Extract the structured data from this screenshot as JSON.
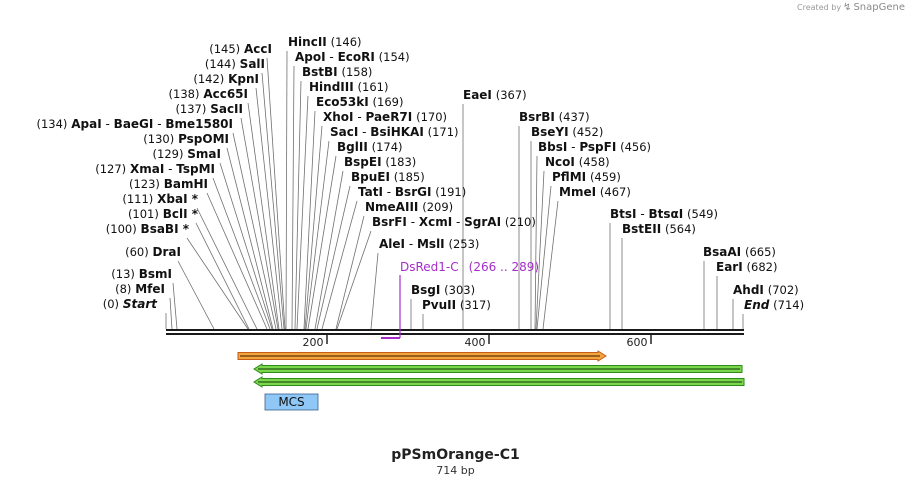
{
  "credit": {
    "prefix": "Created by",
    "brand": "SnapGene",
    "logo_icon": "snapgene-logo-icon"
  },
  "plasmid": {
    "name": "pPSmOrange-C1",
    "size_label": "714 bp"
  },
  "ruler": {
    "ticks": [
      "200",
      "400",
      "600"
    ]
  },
  "sites": [
    {
      "parts": [
        {
          "name": "AccI"
        }
      ],
      "pos": "(145)"
    },
    {
      "parts": [
        {
          "name": "SalI"
        }
      ],
      "pos": "(144)"
    },
    {
      "parts": [
        {
          "name": "KpnI"
        }
      ],
      "pos": "(142)"
    },
    {
      "parts": [
        {
          "name": "Acc65I"
        }
      ],
      "pos": "(138)"
    },
    {
      "parts": [
        {
          "name": "SacII"
        }
      ],
      "pos": "(137)"
    },
    {
      "parts": [
        {
          "name": "ApaI"
        },
        {
          "name": "BaeGI"
        },
        {
          "name": "Bme1580I"
        }
      ],
      "pos": "(134)"
    },
    {
      "parts": [
        {
          "name": "PspOMI"
        }
      ],
      "pos": "(130)"
    },
    {
      "parts": [
        {
          "name": "SmaI"
        }
      ],
      "pos": "(129)"
    },
    {
      "parts": [
        {
          "name": "XmaI"
        },
        {
          "name": "TspMI"
        }
      ],
      "pos": "(127)"
    },
    {
      "parts": [
        {
          "name": "BamHI"
        }
      ],
      "pos": "(123)"
    },
    {
      "parts": [
        {
          "name": "XbaI *"
        }
      ],
      "pos": "(111)"
    },
    {
      "parts": [
        {
          "name": "BclI *"
        }
      ],
      "pos": "(101)"
    },
    {
      "parts": [
        {
          "name": "BsaBI *"
        }
      ],
      "pos": "(100)"
    },
    {
      "parts": [
        {
          "name": "DraI"
        }
      ],
      "pos": "(60)"
    },
    {
      "parts": [
        {
          "name": "BsmI"
        }
      ],
      "pos": "(13)"
    },
    {
      "parts": [
        {
          "name": "MfeI"
        }
      ],
      "pos": "(8)"
    },
    {
      "parts": [
        {
          "name": "Start",
          "italic": true
        }
      ],
      "pos": "(0)"
    },
    {
      "parts": [
        {
          "name": "HincII"
        }
      ],
      "pos": "(146)"
    },
    {
      "parts": [
        {
          "name": "ApoI"
        },
        {
          "name": "EcoRI"
        }
      ],
      "pos": "(154)"
    },
    {
      "parts": [
        {
          "name": "BstBI"
        }
      ],
      "pos": "(158)"
    },
    {
      "parts": [
        {
          "name": "HindIII"
        }
      ],
      "pos": "(161)"
    },
    {
      "parts": [
        {
          "name": "Eco53kI"
        }
      ],
      "pos": "(169)"
    },
    {
      "parts": [
        {
          "name": "XhoI"
        },
        {
          "name": "PaeR7I"
        }
      ],
      "pos": "(170)"
    },
    {
      "parts": [
        {
          "name": "SacI"
        },
        {
          "name": "BsiHKAI"
        }
      ],
      "pos": "(171)"
    },
    {
      "parts": [
        {
          "name": "BglII"
        }
      ],
      "pos": "(174)"
    },
    {
      "parts": [
        {
          "name": "BspEI"
        }
      ],
      "pos": "(183)"
    },
    {
      "parts": [
        {
          "name": "BpuEI"
        }
      ],
      "pos": "(185)"
    },
    {
      "parts": [
        {
          "name": "TatI"
        },
        {
          "name": "BsrGI"
        }
      ],
      "pos": "(191)"
    },
    {
      "parts": [
        {
          "name": "NmeAIII"
        }
      ],
      "pos": "(209)"
    },
    {
      "parts": [
        {
          "name": "BsrFI"
        },
        {
          "name": "XcmI"
        },
        {
          "name": "SgrAI"
        }
      ],
      "pos": "(210)"
    },
    {
      "parts": [
        {
          "name": "AleI"
        },
        {
          "name": "MslI"
        }
      ],
      "pos": "(253)"
    },
    {
      "parts": [
        {
          "name": "EaeI"
        }
      ],
      "pos": "(367)"
    },
    {
      "parts": [
        {
          "name": "BsgI"
        }
      ],
      "pos": "(303)"
    },
    {
      "parts": [
        {
          "name": "PvuII"
        }
      ],
      "pos": "(317)"
    },
    {
      "parts": [
        {
          "name": "BsrBI"
        }
      ],
      "pos": "(437)"
    },
    {
      "parts": [
        {
          "name": "BseYI"
        }
      ],
      "pos": "(452)"
    },
    {
      "parts": [
        {
          "name": "BbsI"
        },
        {
          "name": "PspFI"
        }
      ],
      "pos": "(456)"
    },
    {
      "parts": [
        {
          "name": "NcoI"
        }
      ],
      "pos": "(458)"
    },
    {
      "parts": [
        {
          "name": "PflMI"
        }
      ],
      "pos": "(459)"
    },
    {
      "parts": [
        {
          "name": "MmeI"
        }
      ],
      "pos": "(467)"
    },
    {
      "parts": [
        {
          "name": "BtsI"
        },
        {
          "name": "BtsαI"
        }
      ],
      "pos": "(549)"
    },
    {
      "parts": [
        {
          "name": "BstEII"
        }
      ],
      "pos": "(564)"
    },
    {
      "parts": [
        {
          "name": "BsaAI"
        }
      ],
      "pos": "(665)"
    },
    {
      "parts": [
        {
          "name": "EarI"
        }
      ],
      "pos": "(682)"
    },
    {
      "parts": [
        {
          "name": "AhdI"
        }
      ],
      "pos": "(702)"
    },
    {
      "parts": [
        {
          "name": "End",
          "italic": true
        }
      ],
      "pos": "(714)"
    }
  ],
  "features": {
    "dsred": {
      "name": "DsRed1-C",
      "range": "(266 .. 289)",
      "color": "#a52ec9"
    },
    "orange_arrow": {
      "color_fill": "#f4a53a",
      "color_stroke": "#c25d1a",
      "start": 90,
      "end": 545,
      "direction": "right"
    },
    "green_arrow_1": {
      "color_fill": "#7bd84c",
      "color_stroke": "#2f8a1c",
      "start": 111,
      "end": 714,
      "direction": "left"
    },
    "green_arrow_2": {
      "color_fill": "#7bd84c",
      "color_stroke": "#2f8a1c",
      "start": 111,
      "end": 714,
      "direction": "left"
    },
    "mcs": {
      "label": "MCS",
      "color": "#8fc7f7",
      "start": 123,
      "end": 188
    }
  },
  "colors": {
    "backbone": "#1a1a1a",
    "leader": "#707070",
    "text": "#111111",
    "tick": "#222222"
  }
}
